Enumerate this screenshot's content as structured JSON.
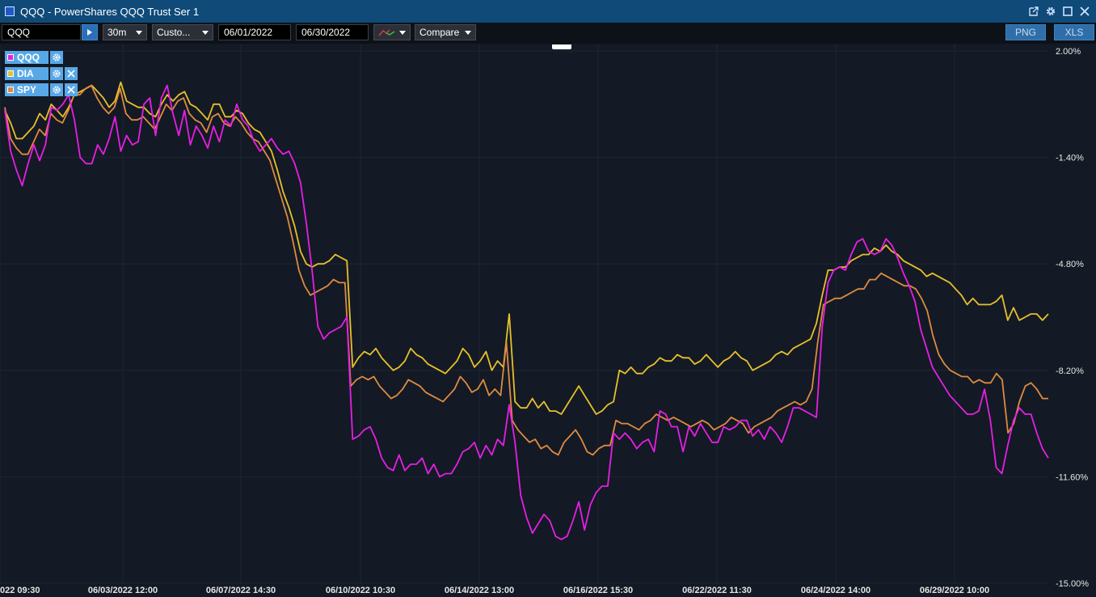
{
  "window": {
    "title": "QQQ - PowerShares QQQ Trust Ser 1"
  },
  "toolbar": {
    "symbol": "QQQ",
    "interval": "30m",
    "range": "Custo...",
    "start_date": "06/01/2022",
    "end_date": "06/30/2022",
    "compare": "Compare",
    "png": "PNG",
    "xls": "XLS"
  },
  "legend": [
    {
      "symbol": "QQQ",
      "color": "#e81ee6"
    },
    {
      "symbol": "DIA",
      "color": "#e8c02a"
    },
    {
      "symbol": "SPY",
      "color": "#e08a40"
    }
  ],
  "chart_data": {
    "type": "line",
    "y_ticks": [
      "2.00%",
      "-1.40%",
      "-4.80%",
      "-8.20%",
      "-11.60%",
      "-15.00%"
    ],
    "ylim": [
      -15.0,
      2.0
    ],
    "x_ticks": [
      "022 09:30",
      "06/03/2022 12:00",
      "06/07/2022 14:30",
      "06/10/2022 10:30",
      "06/14/2022 13:00",
      "06/16/2022 15:30",
      "06/22/2022 11:30",
      "06/24/2022 14:00",
      "06/29/2022 10:00"
    ],
    "grid": true,
    "series": [
      {
        "name": "QQQ",
        "color": "#e81ee6",
        "values": [
          0.1,
          -1.2,
          -1.8,
          -2.3,
          -1.6,
          -1.0,
          -1.5,
          -1.0,
          0.2,
          0.1,
          0.3,
          0.6,
          -0.2,
          -1.4,
          -1.6,
          -1.6,
          -1.0,
          -1.3,
          -0.8,
          -0.1,
          -1.2,
          -0.7,
          -1.0,
          -0.9,
          0.3,
          0.5,
          -0.7,
          0.5,
          0.9,
          0.0,
          -0.7,
          0.1,
          -1.0,
          -0.4,
          -0.7,
          -1.1,
          -0.4,
          -0.9,
          -0.2,
          -0.4,
          0.3,
          -0.2,
          -0.4,
          -0.9,
          -1.2,
          -1.0,
          -0.8,
          -1.1,
          -1.3,
          -1.2,
          -1.6,
          -2.2,
          -3.5,
          -5.0,
          -6.8,
          -7.2,
          -7.0,
          -6.9,
          -6.8,
          -6.5,
          -10.4,
          -10.3,
          -10.1,
          -10.0,
          -10.4,
          -11.0,
          -11.3,
          -11.4,
          -10.9,
          -11.4,
          -11.2,
          -11.2,
          -11.0,
          -11.5,
          -11.2,
          -11.6,
          -11.5,
          -11.5,
          -11.2,
          -10.8,
          -10.7,
          -10.5,
          -11.0,
          -10.6,
          -10.9,
          -10.4,
          -10.6,
          -9.3,
          -10.5,
          -12.2,
          -12.9,
          -13.4,
          -13.1,
          -12.8,
          -13.0,
          -13.5,
          -13.6,
          -13.5,
          -13.0,
          -12.4,
          -13.3,
          -12.5,
          -12.1,
          -11.9,
          -11.9,
          -10.2,
          -10.4,
          -10.2,
          -10.4,
          -10.7,
          -10.5,
          -10.4,
          -10.8,
          -9.5,
          -9.6,
          -10.0,
          -10.0,
          -10.8,
          -10.0,
          -10.3,
          -9.9,
          -10.2,
          -10.5,
          -10.5,
          -10.0,
          -10.1,
          -10.0,
          -9.8,
          -9.8,
          -10.3,
          -10.1,
          -10.4,
          -10.0,
          -10.2,
          -10.5,
          -10.0,
          -9.4,
          -9.4,
          -9.5,
          -9.6,
          -9.7,
          -6.8,
          -5.4,
          -5.0,
          -4.9,
          -5.0,
          -4.5,
          -4.1,
          -4.0,
          -4.4,
          -4.5,
          -4.4,
          -4.0,
          -4.2,
          -4.6,
          -5.1,
          -5.5,
          -6.0,
          -6.9,
          -7.5,
          -8.1,
          -8.4,
          -8.7,
          -9.0,
          -9.2,
          -9.4,
          -9.6,
          -9.6,
          -9.5,
          -8.8,
          -9.8,
          -11.3,
          -11.5,
          -10.6,
          -9.8,
          -9.4,
          -9.6,
          -9.6,
          -10.2,
          -10.7,
          -11.0
        ]
      },
      {
        "name": "DIA",
        "color": "#e8c02a",
        "values": [
          0.1,
          -0.3,
          -0.8,
          -0.8,
          -0.6,
          -0.4,
          0.0,
          -0.2,
          0.3,
          0.1,
          -0.1,
          0.2,
          0.6,
          0.7,
          0.8,
          0.9,
          0.7,
          0.5,
          0.2,
          0.4,
          1.0,
          0.4,
          0.3,
          0.2,
          0.2,
          0.0,
          -0.1,
          0.3,
          0.6,
          0.4,
          0.6,
          0.7,
          0.3,
          0.2,
          0.0,
          -0.2,
          0.3,
          0.3,
          -0.1,
          -0.1,
          0.1,
          0.0,
          -0.3,
          -0.5,
          -0.6,
          -0.9,
          -1.2,
          -1.8,
          -2.5,
          -3.0,
          -3.6,
          -4.4,
          -4.8,
          -4.9,
          -4.8,
          -4.8,
          -4.7,
          -4.5,
          -4.6,
          -4.7,
          -8.1,
          -7.8,
          -7.6,
          -7.7,
          -7.5,
          -7.8,
          -8.0,
          -8.2,
          -8.1,
          -7.9,
          -7.5,
          -7.7,
          -7.8,
          -8.0,
          -8.1,
          -8.2,
          -8.3,
          -8.1,
          -7.9,
          -7.5,
          -7.7,
          -8.1,
          -7.9,
          -7.6,
          -8.2,
          -7.9,
          -8.1,
          -6.4,
          -9.2,
          -9.4,
          -9.4,
          -9.1,
          -9.4,
          -9.2,
          -9.5,
          -9.5,
          -9.6,
          -9.3,
          -9.0,
          -8.7,
          -9.0,
          -9.3,
          -9.6,
          -9.5,
          -9.3,
          -9.2,
          -8.2,
          -8.3,
          -8.1,
          -8.3,
          -8.3,
          -8.1,
          -8.0,
          -7.8,
          -7.9,
          -7.9,
          -7.7,
          -7.8,
          -7.8,
          -8.0,
          -7.9,
          -7.7,
          -7.9,
          -8.1,
          -7.9,
          -7.8,
          -7.6,
          -7.8,
          -7.9,
          -8.2,
          -8.1,
          -8.0,
          -7.9,
          -7.7,
          -7.6,
          -7.7,
          -7.5,
          -7.4,
          -7.3,
          -7.2,
          -6.7,
          -5.8,
          -5.0,
          -5.0,
          -4.9,
          -4.9,
          -4.7,
          -4.6,
          -4.5,
          -4.5,
          -4.3,
          -4.4,
          -4.2,
          -4.4,
          -4.5,
          -4.7,
          -4.8,
          -4.9,
          -5.0,
          -5.2,
          -5.1,
          -5.2,
          -5.3,
          -5.4,
          -5.6,
          -5.8,
          -6.1,
          -5.9,
          -6.1,
          -6.1,
          -6.1,
          -6.0,
          -5.8,
          -6.6,
          -6.2,
          -6.6,
          -6.5,
          -6.4,
          -6.4,
          -6.6,
          -6.4
        ]
      },
      {
        "name": "SPY",
        "color": "#e08a40",
        "values": [
          0.2,
          -0.8,
          -1.1,
          -1.3,
          -1.3,
          -0.9,
          -0.5,
          -0.7,
          0.0,
          -0.2,
          -0.3,
          0.1,
          0.6,
          0.6,
          0.8,
          0.9,
          0.5,
          0.2,
          0.0,
          0.2,
          0.8,
          0.0,
          -0.2,
          -0.2,
          -0.1,
          -0.3,
          -0.5,
          -0.1,
          0.3,
          0.1,
          0.4,
          0.5,
          0.0,
          -0.2,
          -0.3,
          -0.6,
          -0.1,
          0.0,
          -0.3,
          -0.4,
          -0.1,
          -0.3,
          -0.6,
          -0.8,
          -0.9,
          -1.2,
          -1.5,
          -2.1,
          -2.7,
          -3.3,
          -4.1,
          -5.0,
          -5.5,
          -5.8,
          -5.7,
          -5.6,
          -5.5,
          -5.3,
          -5.4,
          -5.4,
          -8.7,
          -8.5,
          -8.4,
          -8.5,
          -8.4,
          -8.7,
          -8.9,
          -9.1,
          -9.0,
          -8.8,
          -8.5,
          -8.6,
          -8.7,
          -8.9,
          -9.0,
          -9.1,
          -9.2,
          -9.0,
          -8.8,
          -8.4,
          -8.6,
          -8.9,
          -8.8,
          -8.5,
          -9.0,
          -8.8,
          -9.0,
          -7.3,
          -9.8,
          -10.1,
          -10.3,
          -10.5,
          -10.4,
          -10.7,
          -10.6,
          -10.8,
          -10.9,
          -10.5,
          -10.3,
          -10.1,
          -10.4,
          -10.8,
          -10.9,
          -10.7,
          -10.6,
          -10.6,
          -9.8,
          -9.9,
          -9.9,
          -10.0,
          -10.1,
          -9.9,
          -9.8,
          -9.6,
          -9.7,
          -9.8,
          -9.7,
          -9.8,
          -9.9,
          -10.0,
          -9.9,
          -9.8,
          -9.9,
          -10.1,
          -10.0,
          -9.9,
          -9.7,
          -9.8,
          -9.9,
          -10.2,
          -10.0,
          -9.9,
          -9.8,
          -9.7,
          -9.5,
          -9.4,
          -9.3,
          -9.2,
          -9.3,
          -9.2,
          -8.8,
          -7.3,
          -6.1,
          -6.0,
          -5.9,
          -5.9,
          -5.8,
          -5.7,
          -5.6,
          -5.6,
          -5.3,
          -5.3,
          -5.1,
          -5.2,
          -5.3,
          -5.4,
          -5.5,
          -5.5,
          -5.6,
          -5.9,
          -6.3,
          -7.1,
          -7.7,
          -8.0,
          -8.2,
          -8.3,
          -8.4,
          -8.4,
          -8.6,
          -8.5,
          -8.6,
          -8.6,
          -8.3,
          -8.5,
          -10.2,
          -9.9,
          -9.2,
          -8.7,
          -8.6,
          -8.8,
          -9.1,
          -9.1
        ]
      }
    ]
  }
}
